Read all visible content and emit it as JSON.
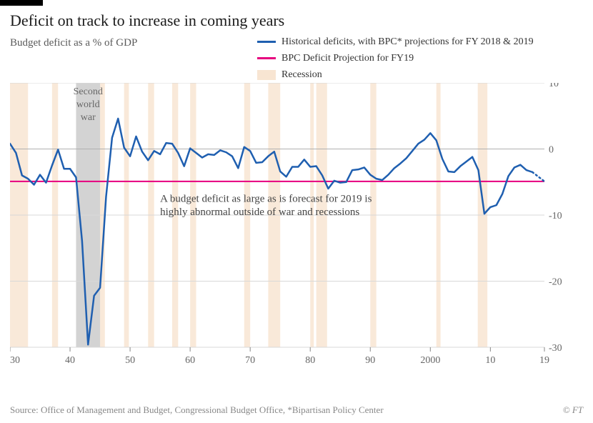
{
  "chart": {
    "type": "line",
    "title": "Deficit on track to increase in coming years",
    "subtitle": "Budget deficit as a % of GDP",
    "source": "Source: Office of Management and Budget, Congressional Budget Office, *Bipartisan Policy Center",
    "copyright": "© FT",
    "legend": {
      "historical": "Historical deficits, with BPC* projections for FY 2018 & 2019",
      "projection": "BPC Deficit Projection for FY19",
      "recession": "Recession"
    },
    "colors": {
      "line_historical": "#1f5fb0",
      "line_projection": "#e6007e",
      "recession_band": "#f8e5d2",
      "ww2_band": "#c0c0c0",
      "gridline": "#d8d8d8",
      "zero_line": "#b0b0b0",
      "background": "#ffffff",
      "text_primary": "#1a1a1a",
      "text_secondary": "#666666"
    },
    "typography": {
      "title_fontsize": 22,
      "subtitle_fontsize": 15,
      "legend_fontsize": 14,
      "tick_fontsize": 14,
      "annotation_fontsize": 15,
      "source_fontsize": 13
    },
    "x_axis": {
      "domain": [
        1930,
        2019
      ],
      "ticks": [
        1930,
        1940,
        1950,
        1960,
        1970,
        1980,
        1990,
        2000,
        2010,
        2019
      ],
      "tick_labels": [
        "1930",
        "40",
        "50",
        "60",
        "70",
        "80",
        "90",
        "2000",
        "10",
        "19"
      ]
    },
    "y_axis": {
      "domain": [
        -30,
        10
      ],
      "ticks": [
        10,
        0,
        -10,
        -20,
        -30
      ],
      "tick_labels": [
        "10",
        "0",
        "-10",
        "-20",
        "-30"
      ]
    },
    "recession_bands": [
      [
        1930,
        1933
      ],
      [
        1937,
        1938
      ],
      [
        1945,
        1945.8
      ],
      [
        1949,
        1949.8
      ],
      [
        1953,
        1954
      ],
      [
        1957,
        1958
      ],
      [
        1960,
        1961
      ],
      [
        1969,
        1970
      ],
      [
        1973,
        1975
      ],
      [
        1980,
        1980.6
      ],
      [
        1981,
        1982.8
      ],
      [
        1990,
        1991
      ],
      [
        2001,
        2001.7
      ],
      [
        2007.9,
        2009.5
      ]
    ],
    "ww2_band": [
      1941,
      1945
    ],
    "ww2_label": {
      "line1": "Second",
      "line2": "world",
      "line3": "war"
    },
    "annotation": {
      "line1": "A budget deficit as large as is forecast for 2019 is",
      "line2": "highly abnormal outside of war and recessions"
    },
    "projection_y": -4.9,
    "series_historical": [
      [
        1930,
        0.8
      ],
      [
        1931,
        -0.6
      ],
      [
        1932,
        -4.0
      ],
      [
        1933,
        -4.5
      ],
      [
        1934,
        -5.4
      ],
      [
        1935,
        -3.9
      ],
      [
        1936,
        -5.1
      ],
      [
        1937,
        -2.5
      ],
      [
        1938,
        -0.1
      ],
      [
        1939,
        -3.0
      ],
      [
        1940,
        -3.0
      ],
      [
        1941,
        -4.3
      ],
      [
        1942,
        -13.9
      ],
      [
        1943,
        -29.6
      ],
      [
        1944,
        -22.2
      ],
      [
        1945,
        -21.0
      ],
      [
        1946,
        -7.2
      ],
      [
        1947,
        1.7
      ],
      [
        1948,
        4.6
      ],
      [
        1949,
        0.2
      ],
      [
        1950,
        -1.1
      ],
      [
        1951,
        1.9
      ],
      [
        1952,
        -0.4
      ],
      [
        1953,
        -1.7
      ],
      [
        1954,
        -0.3
      ],
      [
        1955,
        -0.8
      ],
      [
        1956,
        0.9
      ],
      [
        1957,
        0.8
      ],
      [
        1958,
        -0.6
      ],
      [
        1959,
        -2.6
      ],
      [
        1960,
        0.1
      ],
      [
        1961,
        -0.6
      ],
      [
        1962,
        -1.3
      ],
      [
        1963,
        -0.8
      ],
      [
        1964,
        -0.9
      ],
      [
        1965,
        -0.2
      ],
      [
        1966,
        -0.5
      ],
      [
        1967,
        -1.1
      ],
      [
        1968,
        -2.9
      ],
      [
        1969,
        0.3
      ],
      [
        1970,
        -0.3
      ],
      [
        1971,
        -2.1
      ],
      [
        1972,
        -2.0
      ],
      [
        1973,
        -1.1
      ],
      [
        1974,
        -0.4
      ],
      [
        1975,
        -3.4
      ],
      [
        1976,
        -4.2
      ],
      [
        1977,
        -2.7
      ],
      [
        1978,
        -2.7
      ],
      [
        1979,
        -1.6
      ],
      [
        1980,
        -2.7
      ],
      [
        1981,
        -2.6
      ],
      [
        1982,
        -4.0
      ],
      [
        1983,
        -6.0
      ],
      [
        1984,
        -4.8
      ],
      [
        1985,
        -5.1
      ],
      [
        1986,
        -5.0
      ],
      [
        1987,
        -3.2
      ],
      [
        1988,
        -3.1
      ],
      [
        1989,
        -2.8
      ],
      [
        1990,
        -3.9
      ],
      [
        1991,
        -4.5
      ],
      [
        1992,
        -4.7
      ],
      [
        1993,
        -3.9
      ],
      [
        1994,
        -2.9
      ],
      [
        1995,
        -2.2
      ],
      [
        1996,
        -1.4
      ],
      [
        1997,
        -0.3
      ],
      [
        1998,
        0.8
      ],
      [
        1999,
        1.4
      ],
      [
        2000,
        2.4
      ],
      [
        2001,
        1.3
      ],
      [
        2002,
        -1.5
      ],
      [
        2003,
        -3.4
      ],
      [
        2004,
        -3.5
      ],
      [
        2005,
        -2.6
      ],
      [
        2006,
        -1.9
      ],
      [
        2007,
        -1.2
      ],
      [
        2008,
        -3.2
      ],
      [
        2009,
        -9.8
      ],
      [
        2010,
        -8.8
      ],
      [
        2011,
        -8.5
      ],
      [
        2012,
        -6.8
      ],
      [
        2013,
        -4.1
      ],
      [
        2014,
        -2.8
      ],
      [
        2015,
        -2.4
      ],
      [
        2016,
        -3.2
      ],
      [
        2017,
        -3.5
      ]
    ],
    "series_dotted": [
      [
        2017,
        -3.5
      ],
      [
        2018,
        -4.2
      ],
      [
        2019,
        -4.9
      ]
    ]
  }
}
